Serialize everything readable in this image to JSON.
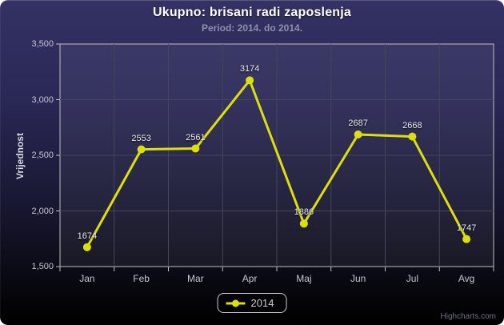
{
  "chart": {
    "colors": {
      "series": "#DDDF0D",
      "background_top": "#303060",
      "background_bottom": "#000000",
      "grid_line": "#45455B",
      "axis_line": "#C0C0C0",
      "axis_label": "#C6C6D4",
      "title_color": "#FFFFFF",
      "subtitle_color": "#8F8FA8",
      "data_label": "#E9E9EF"
    },
    "credits_label": "Highcharts.com"
  },
  "chart_data": {
    "type": "line",
    "title": "Ukupno: brisani radi zaposlenja",
    "subtitle": "Period: 2014. do 2014.",
    "categories": [
      "Jan",
      "Feb",
      "Mar",
      "Apr",
      "Maj",
      "Jun",
      "Jul",
      "Avg"
    ],
    "series": [
      {
        "name": "2014",
        "color": "#DDDF0D",
        "values": [
          1674,
          2553,
          2561,
          3174,
          1886,
          2687,
          2668,
          1747
        ]
      }
    ],
    "xlabel": "",
    "ylabel": "Vrijednost",
    "ylim": [
      1500,
      3500
    ],
    "ytick_step": 500,
    "ytick_labels": [
      "1,500",
      "2,000",
      "2,500",
      "3,000",
      "3,500"
    ],
    "grid": true,
    "legend_position": "bottom-center"
  },
  "legend": {
    "items": [
      {
        "label": "2014",
        "color": "#DDDF0D"
      }
    ]
  }
}
